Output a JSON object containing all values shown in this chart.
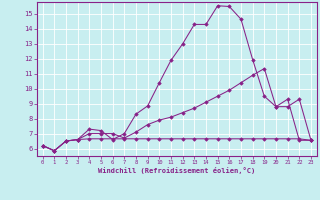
{
  "xlabel": "Windchill (Refroidissement éolien,°C)",
  "background_color": "#c8eef0",
  "line_color": "#882288",
  "grid_color": "#ffffff",
  "xlim": [
    -0.5,
    23.5
  ],
  "ylim": [
    5.5,
    15.8
  ],
  "xticks": [
    0,
    1,
    2,
    3,
    4,
    5,
    6,
    7,
    8,
    9,
    10,
    11,
    12,
    13,
    14,
    15,
    16,
    17,
    18,
    19,
    20,
    21,
    22,
    23
  ],
  "yticks": [
    6,
    7,
    8,
    9,
    10,
    11,
    12,
    13,
    14,
    15
  ],
  "curve1_x": [
    0,
    1,
    2,
    3,
    4,
    5,
    6,
    7,
    8,
    9,
    10,
    11,
    12,
    13,
    14,
    15,
    16,
    17,
    18,
    19,
    20,
    21,
    22,
    23
  ],
  "curve1_y": [
    6.2,
    5.85,
    6.5,
    6.6,
    7.3,
    7.2,
    6.6,
    7.0,
    8.3,
    8.85,
    10.4,
    11.9,
    13.0,
    14.3,
    14.3,
    15.55,
    15.5,
    14.65,
    11.95,
    9.5,
    8.8,
    9.3,
    6.55,
    6.55
  ],
  "curve2_x": [
    0,
    1,
    2,
    3,
    4,
    5,
    6,
    7,
    8,
    9,
    10,
    11,
    12,
    13,
    14,
    15,
    16,
    17,
    18,
    19,
    20,
    21,
    22,
    23
  ],
  "curve2_y": [
    6.2,
    5.85,
    6.5,
    6.6,
    7.0,
    7.0,
    7.0,
    6.7,
    7.1,
    7.6,
    7.9,
    8.1,
    8.4,
    8.7,
    9.1,
    9.5,
    9.9,
    10.4,
    10.9,
    11.35,
    8.8,
    8.8,
    9.3,
    6.55
  ],
  "curve3_x": [
    0,
    1,
    2,
    3,
    4,
    5,
    6,
    7,
    8,
    9,
    10,
    11,
    12,
    13,
    14,
    15,
    16,
    17,
    18,
    19,
    20,
    21,
    22,
    23
  ],
  "curve3_y": [
    6.2,
    5.85,
    6.5,
    6.6,
    6.65,
    6.65,
    6.65,
    6.65,
    6.65,
    6.65,
    6.65,
    6.65,
    6.65,
    6.65,
    6.65,
    6.65,
    6.65,
    6.65,
    6.65,
    6.65,
    6.65,
    6.65,
    6.65,
    6.55
  ]
}
